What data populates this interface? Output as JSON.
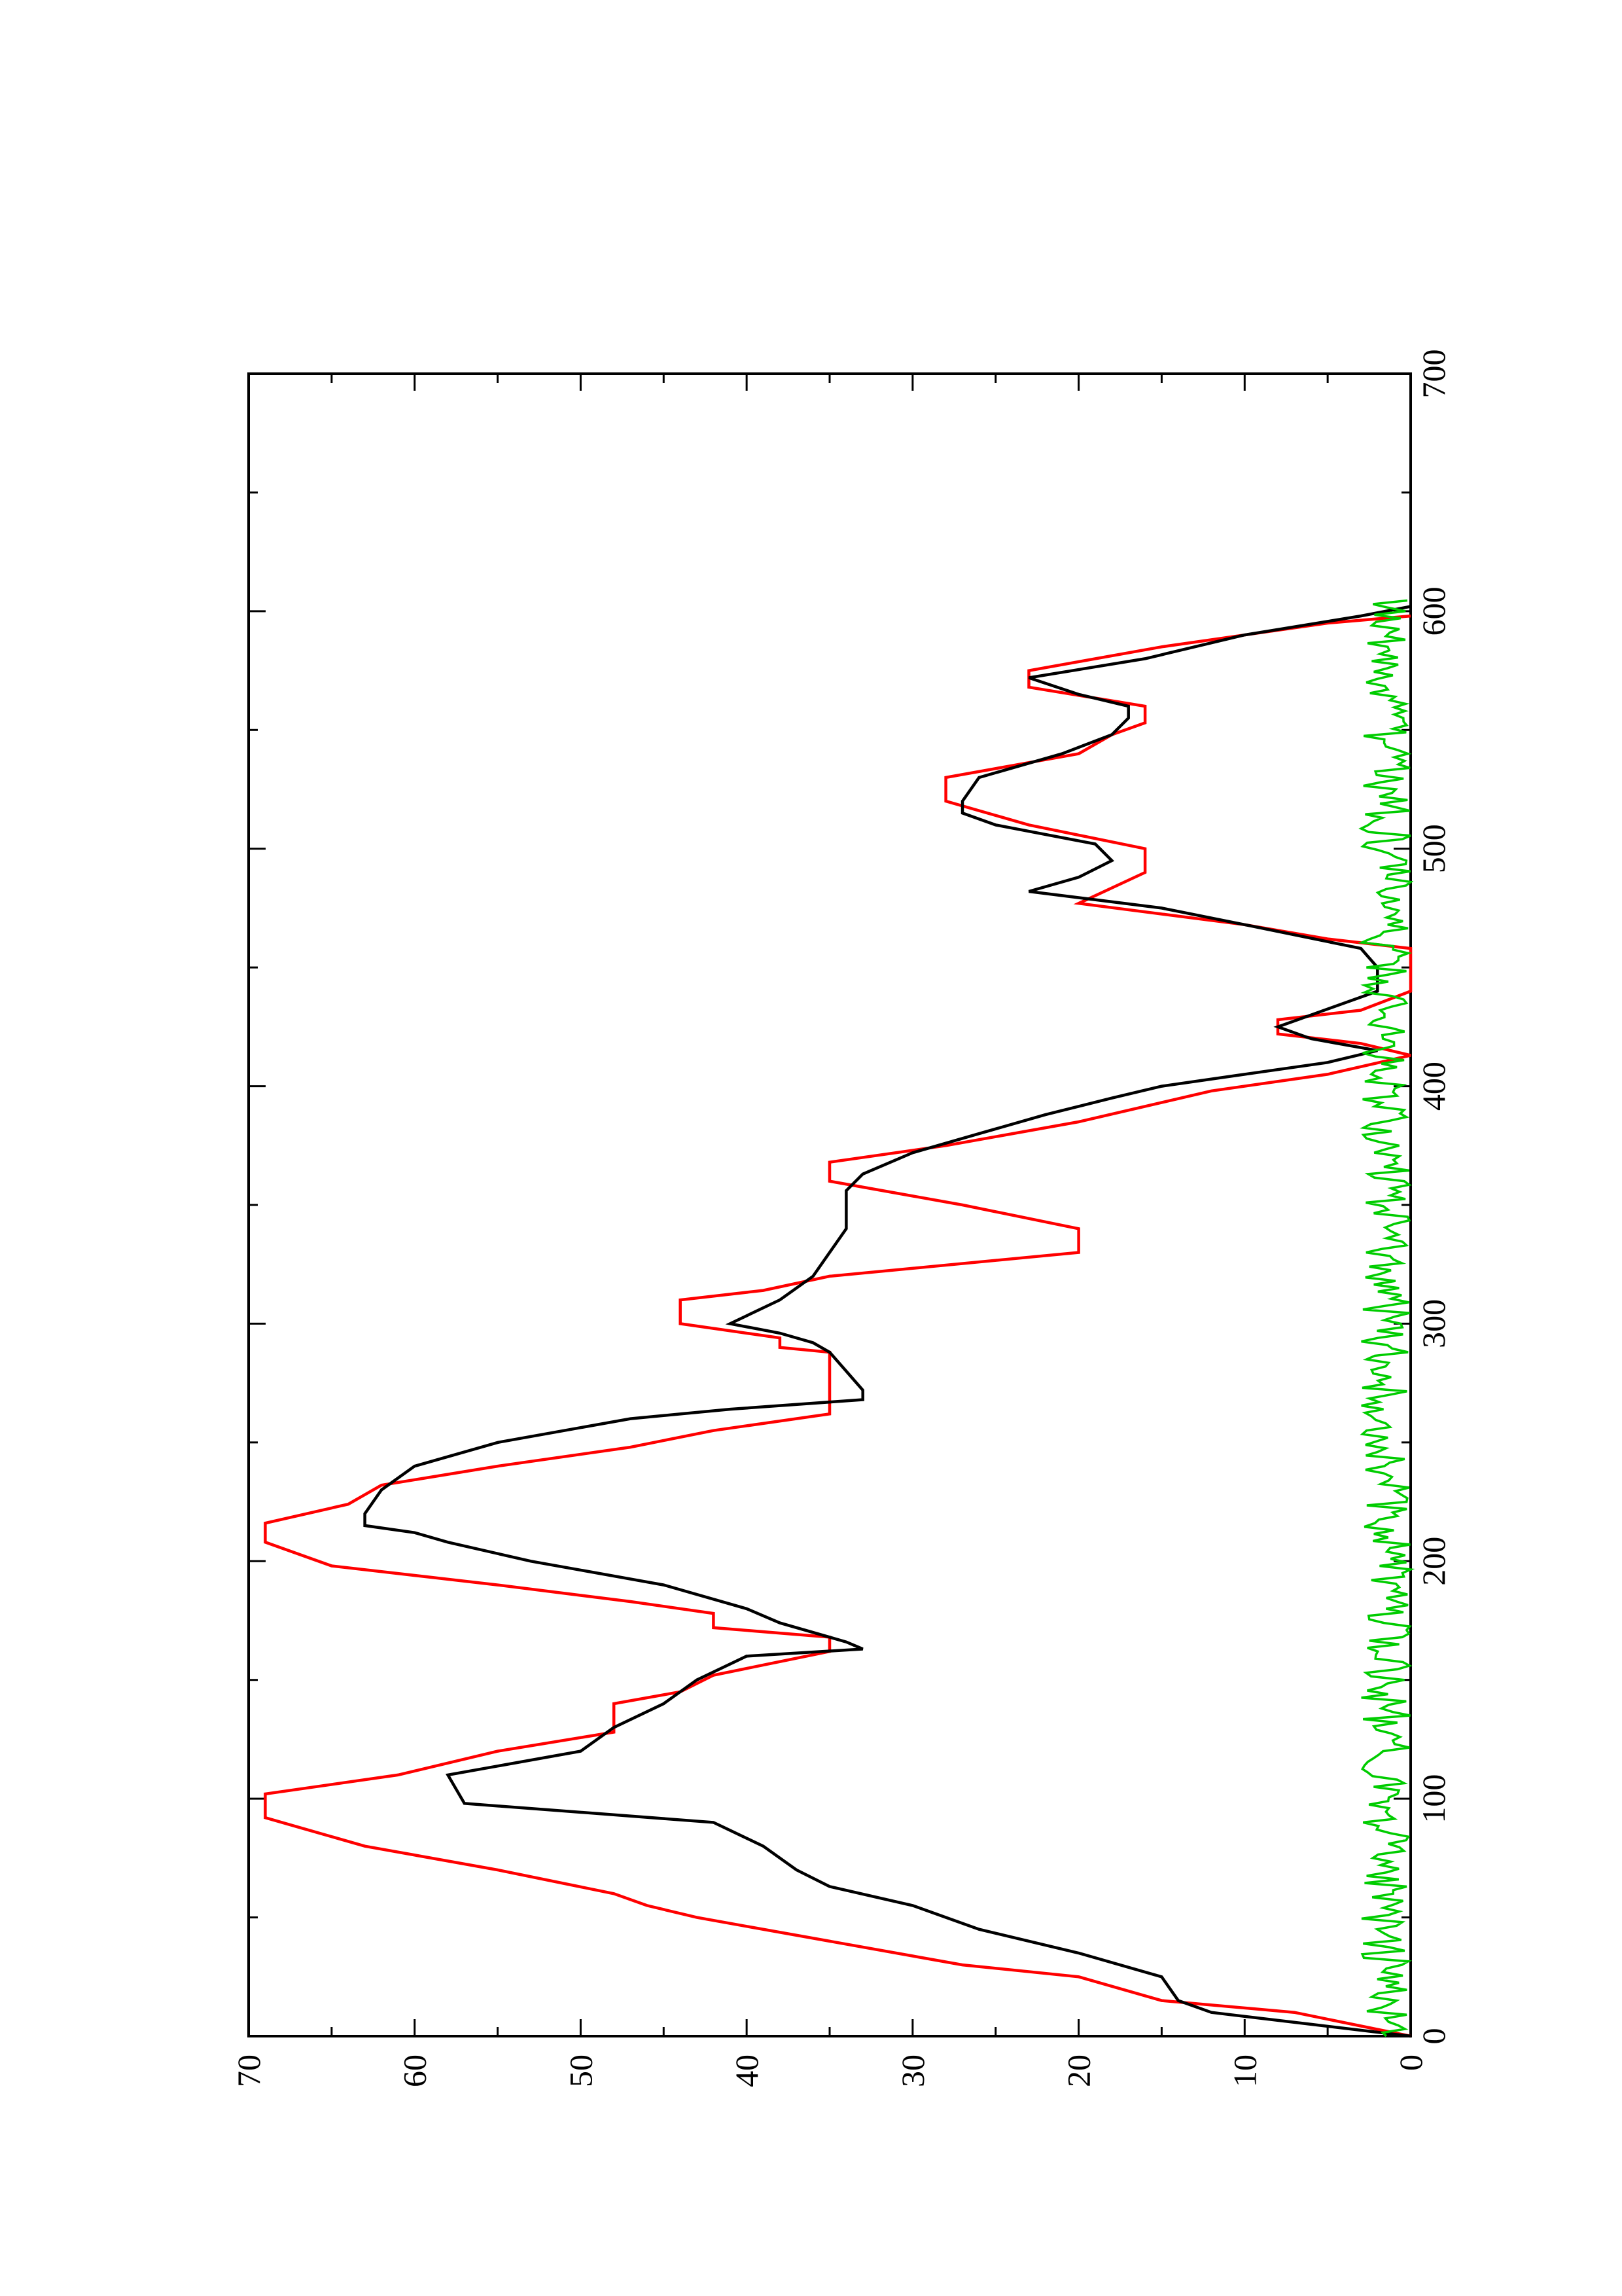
{
  "chart_data": {
    "type": "line",
    "title": "",
    "xlabel": "",
    "ylabel": "",
    "xlim": [
      0,
      700
    ],
    "ylim": [
      0,
      70
    ],
    "x_ticks": [
      0,
      100,
      200,
      300,
      400,
      500,
      600,
      700
    ],
    "x_minor_ticks": [
      50,
      150,
      250,
      350,
      450,
      550,
      650
    ],
    "y_ticks": [
      0,
      10,
      20,
      30,
      40,
      50,
      60,
      70
    ],
    "y_minor_ticks": [
      5,
      15,
      25,
      35,
      45,
      55,
      65
    ],
    "x_tick_labels": [
      "0",
      "100",
      "200",
      "300",
      "400",
      "500",
      "600",
      "700"
    ],
    "y_tick_labels": [
      "0",
      "10",
      "20",
      "30",
      "40",
      "50",
      "60",
      "70"
    ],
    "grid": false,
    "legend": "none",
    "orientation": "rotated-90",
    "series": [
      {
        "color": "#ff0000",
        "style": "step",
        "points": [
          [
            0,
            0
          ],
          [
            10,
            7
          ],
          [
            15,
            15
          ],
          [
            25,
            20
          ],
          [
            30,
            27
          ],
          [
            40,
            35
          ],
          [
            50,
            43
          ],
          [
            55,
            46
          ],
          [
            60,
            48
          ],
          [
            70,
            55
          ],
          [
            80,
            63
          ],
          [
            92,
            69
          ],
          [
            102,
            69
          ],
          [
            110,
            61
          ],
          [
            120,
            55
          ],
          [
            128,
            48
          ],
          [
            140,
            48
          ],
          [
            145,
            44
          ],
          [
            152,
            42
          ],
          [
            162,
            35
          ],
          [
            168,
            35
          ],
          [
            172,
            42
          ],
          [
            178,
            42
          ],
          [
            183,
            47
          ],
          [
            190,
            55
          ],
          [
            198,
            65
          ],
          [
            208,
            69
          ],
          [
            216,
            69
          ],
          [
            224,
            64
          ],
          [
            232,
            62
          ],
          [
            240,
            55
          ],
          [
            248,
            47
          ],
          [
            255,
            42
          ],
          [
            262,
            35
          ],
          [
            288,
            35
          ],
          [
            290,
            38
          ],
          [
            294,
            38
          ],
          [
            300,
            44
          ],
          [
            310,
            44
          ],
          [
            314,
            39
          ],
          [
            320,
            35
          ],
          [
            330,
            20
          ],
          [
            340,
            20
          ],
          [
            350,
            27
          ],
          [
            360,
            35
          ],
          [
            368,
            35
          ],
          [
            375,
            28
          ],
          [
            385,
            20
          ],
          [
            398,
            12
          ],
          [
            405,
            5
          ],
          [
            413,
            0
          ],
          [
            418,
            3
          ],
          [
            422,
            8
          ],
          [
            428,
            8
          ],
          [
            432,
            3
          ],
          [
            440,
            0
          ],
          [
            458,
            0
          ],
          [
            462,
            5
          ],
          [
            468,
            10
          ],
          [
            477,
            20
          ],
          [
            490,
            16
          ],
          [
            500,
            16
          ],
          [
            510,
            23
          ],
          [
            520,
            28
          ],
          [
            530,
            28
          ],
          [
            535,
            24
          ],
          [
            540,
            20
          ],
          [
            548,
            18
          ],
          [
            553,
            16
          ],
          [
            560,
            16
          ],
          [
            568,
            23
          ],
          [
            575,
            23
          ],
          [
            585,
            15
          ],
          [
            595,
            5
          ],
          [
            598,
            0
          ]
        ]
      },
      {
        "color": "#000000",
        "style": "line",
        "points": [
          [
            0,
            0
          ],
          [
            5,
            6
          ],
          [
            10,
            12
          ],
          [
            15,
            14
          ],
          [
            25,
            15
          ],
          [
            35,
            20
          ],
          [
            45,
            26
          ],
          [
            55,
            30
          ],
          [
            63,
            35
          ],
          [
            70,
            37
          ],
          [
            80,
            39
          ],
          [
            90,
            42
          ],
          [
            98,
            57
          ],
          [
            110,
            58
          ],
          [
            120,
            50
          ],
          [
            130,
            48
          ],
          [
            140,
            45
          ],
          [
            150,
            43
          ],
          [
            160,
            40
          ],
          [
            163,
            33
          ],
          [
            166,
            34
          ],
          [
            174,
            38
          ],
          [
            180,
            40
          ],
          [
            190,
            45
          ],
          [
            200,
            53
          ],
          [
            208,
            58
          ],
          [
            212,
            60
          ],
          [
            215,
            63
          ],
          [
            220,
            63
          ],
          [
            230,
            62
          ],
          [
            240,
            60
          ],
          [
            250,
            55
          ],
          [
            260,
            47
          ],
          [
            264,
            41
          ],
          [
            268,
            33
          ],
          [
            272,
            33
          ],
          [
            280,
            34
          ],
          [
            288,
            35
          ],
          [
            292,
            36
          ],
          [
            296,
            38
          ],
          [
            300,
            41
          ],
          [
            310,
            38
          ],
          [
            320,
            36
          ],
          [
            330,
            35
          ],
          [
            340,
            34
          ],
          [
            350,
            34
          ],
          [
            356,
            34
          ],
          [
            363,
            33
          ],
          [
            372,
            30
          ],
          [
            380,
            26
          ],
          [
            388,
            22
          ],
          [
            395,
            18
          ],
          [
            400,
            15
          ],
          [
            405,
            10
          ],
          [
            410,
            5
          ],
          [
            415,
            2
          ],
          [
            420,
            6
          ],
          [
            425,
            8
          ],
          [
            430,
            6
          ],
          [
            440,
            2
          ],
          [
            450,
            2
          ],
          [
            458,
            3
          ],
          [
            468,
            10
          ],
          [
            475,
            15
          ],
          [
            482,
            23
          ],
          [
            488,
            20
          ],
          [
            495,
            18
          ],
          [
            502,
            19
          ],
          [
            510,
            25
          ],
          [
            515,
            27
          ],
          [
            520,
            27
          ],
          [
            530,
            26
          ],
          [
            540,
            21
          ],
          [
            548,
            18
          ],
          [
            555,
            17
          ],
          [
            560,
            17
          ],
          [
            565,
            20
          ],
          [
            572,
            23
          ],
          [
            580,
            16
          ],
          [
            590,
            10
          ],
          [
            598,
            3
          ],
          [
            602,
            0
          ]
        ]
      },
      {
        "color": "#00cc00",
        "style": "line",
        "noise": true,
        "x_range": [
          0,
          605
        ],
        "amplitude": [
          0,
          3
        ]
      }
    ]
  }
}
